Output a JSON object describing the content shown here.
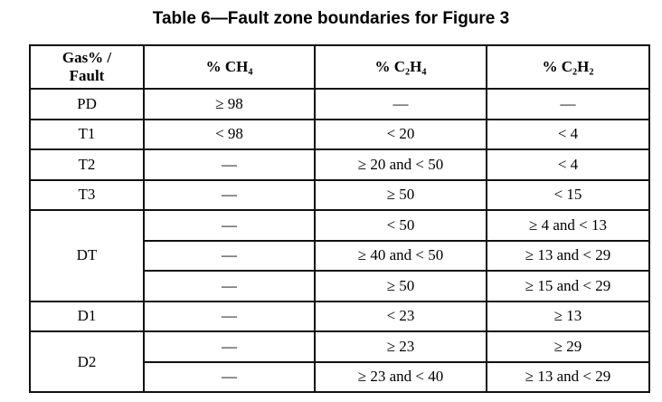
{
  "title": "Table 6—Fault zone boundaries for Figure 3",
  "headers": [
    "Gas% / Fault",
    "% CH₄",
    "% C₂H₄",
    "% C₂H₂"
  ],
  "rows": [
    {
      "fault": "PD",
      "ch4": "≥ 98",
      "c2h4": "—",
      "c2h2": "—"
    },
    {
      "fault": "T1",
      "ch4": "< 98",
      "c2h4": "< 20",
      "c2h2": "< 4"
    },
    {
      "fault": "T2",
      "ch4": "—",
      "c2h4": "≥ 20 and < 50",
      "c2h2": "< 4"
    },
    {
      "fault": "T3",
      "ch4": "—",
      "c2h4": "≥ 50",
      "c2h2": "< 15"
    },
    {
      "fault": "DT",
      "ch4": "—",
      "c2h4": "< 50",
      "c2h2": "≥ 4 and  < 13"
    },
    {
      "fault": "",
      "ch4": "—",
      "c2h4": "≥ 40 and < 50",
      "c2h2": "≥ 13 and  < 29"
    },
    {
      "fault": "",
      "ch4": "—",
      "c2h4": "≥ 50",
      "c2h2": "≥ 15 and < 29"
    },
    {
      "fault": "D1",
      "ch4": "—",
      "c2h4": "< 23",
      "c2h2": "≥ 13"
    },
    {
      "fault": "D2",
      "ch4": "—",
      "c2h4": "≥ 23",
      "c2h2": "≥ 29"
    },
    {
      "fault": "",
      "ch4": "—",
      "c2h4": "≥ 23 and < 40",
      "c2h2": "≥ 13 and < 29"
    }
  ]
}
